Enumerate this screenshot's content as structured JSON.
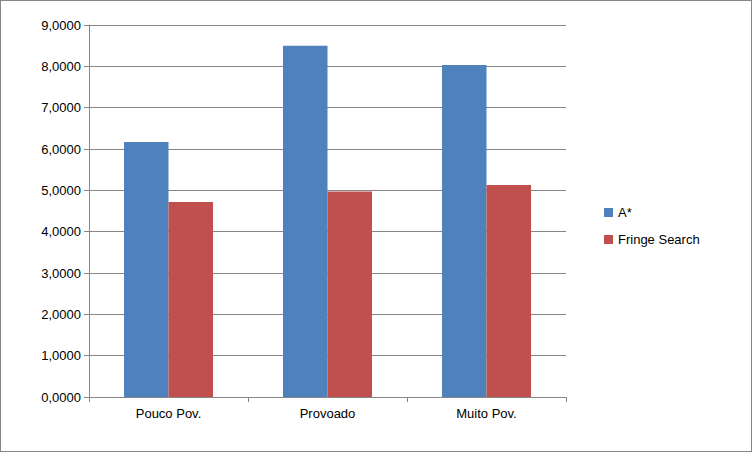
{
  "chart_data": {
    "type": "bar",
    "categories": [
      "Pouco Pov.",
      "Provoado",
      "Muito Pov."
    ],
    "series": [
      {
        "name": "A*",
        "color": "#4f81bd",
        "values": [
          6.17,
          8.5,
          8.03
        ]
      },
      {
        "name": "Fringe Search",
        "color": "#c0504d",
        "values": [
          4.72,
          4.97,
          5.13
        ]
      }
    ],
    "ylim": [
      0,
      9
    ],
    "yticks": [
      {
        "value": 0,
        "label": "0,0000"
      },
      {
        "value": 1,
        "label": "1,0000"
      },
      {
        "value": 2,
        "label": "2,0000"
      },
      {
        "value": 3,
        "label": "3,0000"
      },
      {
        "value": 4,
        "label": "4,0000"
      },
      {
        "value": 5,
        "label": "5,0000"
      },
      {
        "value": 6,
        "label": "6,0000"
      },
      {
        "value": 7,
        "label": "7,0000"
      },
      {
        "value": 8,
        "label": "8,0000"
      },
      {
        "value": 9,
        "label": "9,0000"
      }
    ],
    "grid": true,
    "legend": "right"
  }
}
